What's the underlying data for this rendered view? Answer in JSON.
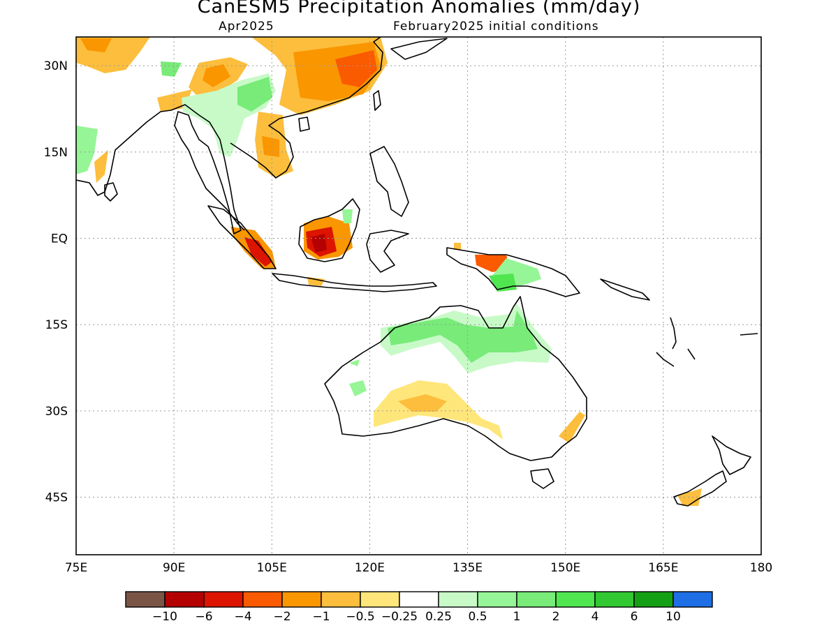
{
  "title": "CanESM5 Precipitation Anomalies (mm/day)",
  "subtitle_left": "Apr2025",
  "subtitle_right": "February2025 initial conditions",
  "map": {
    "lon_range": [
      75,
      180
    ],
    "lat_range": [
      -55,
      35
    ],
    "lon_labels": [
      "75E",
      "90E",
      "105E",
      "120E",
      "135E",
      "150E",
      "165E",
      "180"
    ],
    "lat_labels": [
      "30N",
      "15N",
      "EQ",
      "15S",
      "30S",
      "45S"
    ],
    "grid": "dotted"
  },
  "legend": {
    "colors": [
      "#7a5546",
      "#b40000",
      "#dc1400",
      "#fa5a00",
      "#fa9600",
      "#fcbe3c",
      "#ffe67a",
      "#ffffff",
      "#c8fac8",
      "#96f596",
      "#78eb78",
      "#50e650",
      "#32c832",
      "#14a014",
      "#1e6ee6"
    ],
    "labels": [
      "-10",
      "-6",
      "-4",
      "-2",
      "-1",
      "-0.5",
      "-0.25",
      "0.25",
      "0.5",
      "1",
      "2",
      "4",
      "6",
      "10"
    ]
  }
}
